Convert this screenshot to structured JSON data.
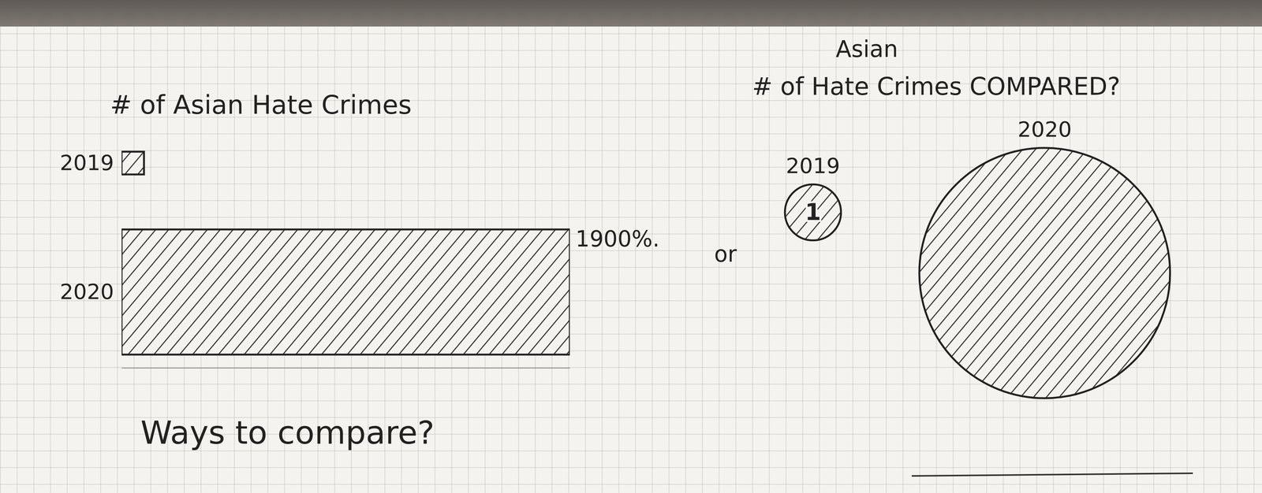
{
  "chart_data": [
    {
      "type": "bar",
      "orientation": "horizontal",
      "title": "# of Asian Hate Crimes",
      "categories": [
        "2019",
        "2020"
      ],
      "values": [
        1,
        20
      ],
      "color": "#222222",
      "xlim": [
        0,
        20
      ],
      "tick_labels": "y",
      "annotations": [
        "1900%.",
        "Ways to compare?",
        "or"
      ]
    },
    {
      "type": "bubble",
      "subtitle": "Asian",
      "title": "# of Hate Crimes COMPARED?",
      "categories": [
        "2019",
        "2020"
      ],
      "values": [
        1,
        20
      ],
      "color": "#222222",
      "data_labels": true,
      "value_labels": [
        "1",
        null
      ],
      "tick_labels": false
    }
  ]
}
